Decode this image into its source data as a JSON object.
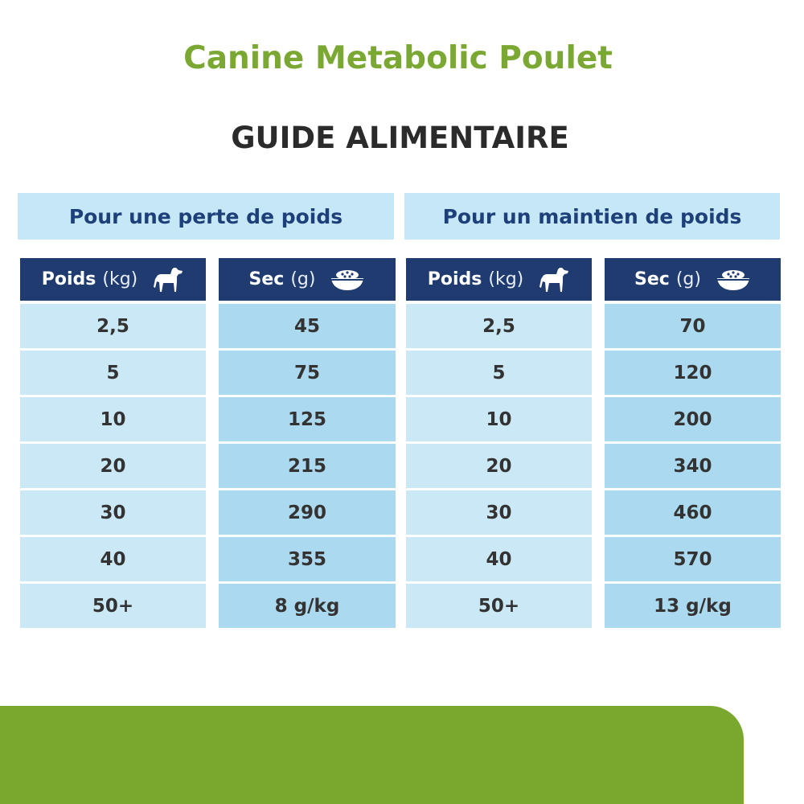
{
  "title": "Canine Metabolic Poulet",
  "subtitle": "GUIDE ALIMENTAIRE",
  "sections": [
    {
      "heading": "Pour une perte de poids",
      "columns": [
        {
          "label": "Poids",
          "unit": "(kg)"
        },
        {
          "label": "Sec",
          "unit": "(g)"
        }
      ],
      "rows": [
        [
          "2,5",
          "45"
        ],
        [
          "5",
          "75"
        ],
        [
          "10",
          "125"
        ],
        [
          "20",
          "215"
        ],
        [
          "30",
          "290"
        ],
        [
          "40",
          "355"
        ],
        [
          "50+",
          "8 g/kg"
        ]
      ]
    },
    {
      "heading": "Pour un maintien de poids",
      "columns": [
        {
          "label": "Poids",
          "unit": "(kg)"
        },
        {
          "label": "Sec",
          "unit": "(g)"
        }
      ],
      "rows": [
        [
          "2,5",
          "70"
        ],
        [
          "5",
          "120"
        ],
        [
          "10",
          "200"
        ],
        [
          "20",
          "340"
        ],
        [
          "30",
          "460"
        ],
        [
          "40",
          "570"
        ],
        [
          "50+",
          "13 g/kg"
        ]
      ]
    }
  ]
}
